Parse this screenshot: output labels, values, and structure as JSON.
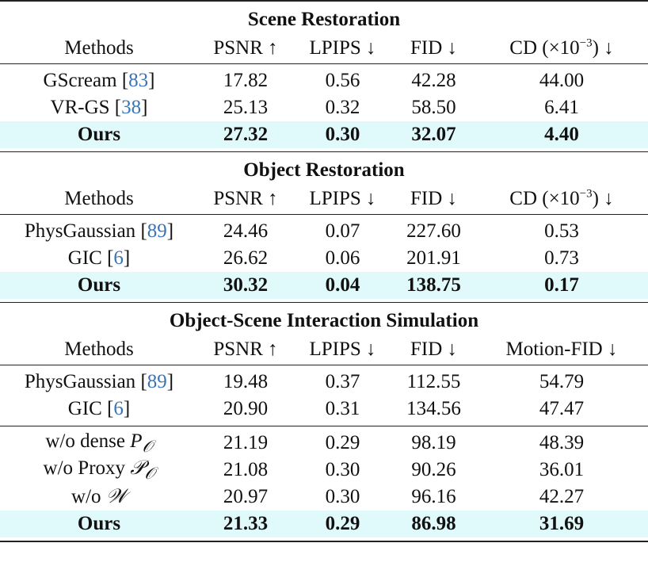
{
  "sections": [
    {
      "title": "Scene Restoration",
      "headers": [
        "Methods",
        "PSNR ↑",
        "LPIPS ↓",
        "FID ↓",
        "CD (×10^-3) ↓"
      ],
      "rows": [
        {
          "method": "GScream",
          "cite": "83",
          "psnr": "17.82",
          "lpips": "0.56",
          "fid": "42.28",
          "last": "44.00"
        },
        {
          "method": "VR-GS",
          "cite": "38",
          "psnr": "25.13",
          "lpips": "0.32",
          "fid": "58.50",
          "last": "6.41"
        }
      ],
      "ours": {
        "method": "Ours",
        "psnr": "27.32",
        "lpips": "0.30",
        "fid": "32.07",
        "last": "4.40"
      }
    },
    {
      "title": "Object Restoration",
      "headers": [
        "Methods",
        "PSNR ↑",
        "LPIPS ↓",
        "FID ↓",
        "CD (×10^-3) ↓"
      ],
      "rows": [
        {
          "method": "PhysGaussian",
          "cite": "89",
          "psnr": "24.46",
          "lpips": "0.07",
          "fid": "227.60",
          "last": "0.53"
        },
        {
          "method": "GIC",
          "cite": "6",
          "psnr": "26.62",
          "lpips": "0.06",
          "fid": "201.91",
          "last": "0.73"
        }
      ],
      "ours": {
        "method": "Ours",
        "psnr": "30.32",
        "lpips": "0.04",
        "fid": "138.75",
        "last": "0.17"
      }
    },
    {
      "title": "Object-Scene Interaction Simulation",
      "headers": [
        "Methods",
        "PSNR ↑",
        "LPIPS ↓",
        "FID ↓",
        "Motion-FID ↓"
      ],
      "rows": [
        {
          "method": "PhysGaussian",
          "cite": "89",
          "psnr": "19.48",
          "lpips": "0.37",
          "fid": "112.55",
          "last": "54.79"
        },
        {
          "method": "GIC",
          "cite": "6",
          "psnr": "20.90",
          "lpips": "0.31",
          "fid": "134.56",
          "last": "47.47"
        }
      ],
      "ablations": [
        {
          "method": "w/o dense",
          "sym": "P",
          "sub": "𝒪",
          "psnr": "21.19",
          "lpips": "0.29",
          "fid": "98.19",
          "last": "48.39"
        },
        {
          "method": "w/o Proxy",
          "sym": "𝒫",
          "sub": "𝒪",
          "psnr": "21.08",
          "lpips": "0.30",
          "fid": "90.26",
          "last": "36.01"
        },
        {
          "method": "w/o",
          "sym": "𝒲",
          "sub": "",
          "psnr": "20.97",
          "lpips": "0.30",
          "fid": "96.16",
          "last": "42.27"
        }
      ],
      "ours": {
        "method": "Ours",
        "psnr": "21.33",
        "lpips": "0.29",
        "fid": "86.98",
        "last": "31.69"
      }
    }
  ],
  "labels": {
    "methods": "Methods",
    "psnr": "PSNR ↑",
    "lpips": "LPIPS ↓",
    "fid": "FID ↓",
    "cd_prefix": "CD (×10",
    "cd_exp": "−3",
    "cd_suffix": ") ↓",
    "motion_fid": "Motion-FID ↓"
  },
  "colors": {
    "highlight": "#e0fafc",
    "citation": "#3a74b8"
  }
}
